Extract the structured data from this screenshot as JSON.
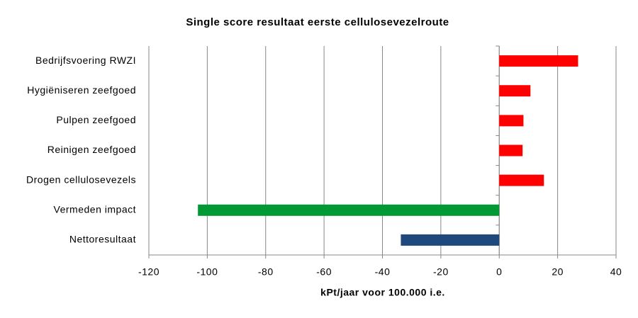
{
  "chart_data": {
    "type": "hbar",
    "title": "Single score resultaat eerste cellulosevezelroute",
    "x_label": "kPt/jaar voor 100.000 i.e.",
    "categories": [
      "Bedrijfsvoering RWZI",
      "Hygiëniseren zeefgoed",
      "Pulpen zeefgoed",
      "Reinigen zeefgoed",
      "Drogen cellulosevezels",
      "Vermeden impact",
      "Nettoresultaat"
    ],
    "values": [
      27,
      10.7,
      8.3,
      8,
      15.3,
      -103.2,
      -33.7
    ],
    "colors": [
      "#ff0000",
      "#ff0000",
      "#ff0000",
      "#ff0000",
      "#ff0000",
      "#009933",
      "#1f497d"
    ],
    "xlim": [
      -120,
      40
    ],
    "xticks": [
      -120,
      -100,
      -80,
      -60,
      -40,
      -20,
      0,
      20,
      40
    ],
    "grid": true
  }
}
